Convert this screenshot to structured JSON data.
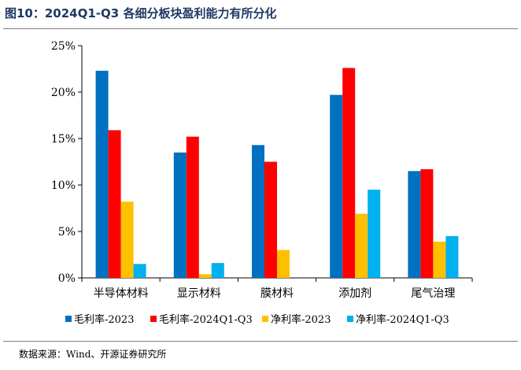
{
  "figure": {
    "title": "图10：2024Q1-Q3 各细分板块盈利能力有所分化",
    "source": "数据来源：Wind、开源证券研究所"
  },
  "chart_data": {
    "type": "bar",
    "categories": [
      "半导体材料",
      "显示材料",
      "膜材料",
      "添加剂",
      "尾气治理"
    ],
    "series": [
      {
        "name": "毛利率-2023",
        "color": "#0070c0",
        "values": [
          22.3,
          13.5,
          14.3,
          19.7,
          11.5
        ]
      },
      {
        "name": "毛利率-2024Q1-Q3",
        "color": "#ff0000",
        "values": [
          15.9,
          15.2,
          12.5,
          22.6,
          11.7
        ]
      },
      {
        "name": "净利率-2023",
        "color": "#ffc000",
        "values": [
          8.2,
          0.4,
          3.0,
          6.9,
          3.9
        ]
      },
      {
        "name": "净利率-2024Q1-Q3",
        "color": "#00b0f0",
        "values": [
          1.5,
          1.6,
          null,
          9.5,
          4.5
        ]
      }
    ],
    "ylim": [
      0,
      25
    ],
    "yticks": [
      0,
      5,
      10,
      15,
      20,
      25
    ],
    "ytick_labels": [
      "0%",
      "5%",
      "10%",
      "15%",
      "20%",
      "25%"
    ],
    "grid": false,
    "legend_position": "bottom",
    "xlabel": "",
    "ylabel": ""
  }
}
